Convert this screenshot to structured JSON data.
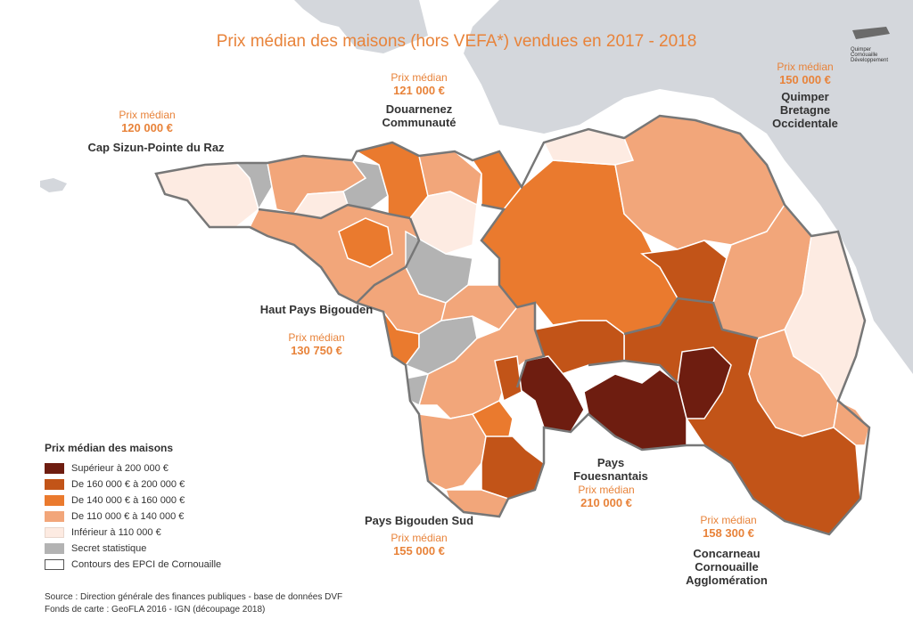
{
  "title": "Prix médian des maisons (hors VEFA*) vendues en 2017 - 2018",
  "logo": {
    "line1": "Quimper",
    "line2": "Cornouaille",
    "line3": "Développement"
  },
  "colors": {
    "sup_200": "#6e1d10",
    "160_200": "#c25418",
    "140_160": "#ea7a2e",
    "110_140": "#f2a67a",
    "inf_110": "#fdebe2",
    "secret": "#b3b3b3",
    "sea": "#ffffff",
    "land_outside": "#d4d7dc"
  },
  "regions": [
    {
      "name": "Cap Sizun-Pointe du Raz",
      "label": "Prix médian",
      "price": "120 000 €"
    },
    {
      "name": "Douarnenez Communauté",
      "label": "Prix médian",
      "price": "121 000 €"
    },
    {
      "name": "Quimper Bretagne Occidentale",
      "label": "Prix médian",
      "price": "150 000 €"
    },
    {
      "name": "Haut Pays Bigouden",
      "label": "Prix médian",
      "price": "130 750 €"
    },
    {
      "name": "Pays Fouesnantais",
      "label": "Prix médian",
      "price": "210 000 €"
    },
    {
      "name": "Pays Bigouden Sud",
      "label": "Prix médian",
      "price": "155 000 €"
    },
    {
      "name": "Concarneau Cornouaille Agglomération",
      "label": "Prix médian",
      "price": "158 300 €"
    }
  ],
  "legend": {
    "title": "Prix médian des maisons",
    "items": [
      {
        "label": "Supérieur à 200 000 €",
        "color": "#6e1d10"
      },
      {
        "label": "De 160 000 € à 200 000 €",
        "color": "#c25418"
      },
      {
        "label": "De 140 000 € à 160 000 €",
        "color": "#ea7a2e"
      },
      {
        "label": "De 110 000 € à 140 000 €",
        "color": "#f2a67a"
      },
      {
        "label": "Inférieur à 110 000 €",
        "color": "#fdebe2"
      },
      {
        "label": "Secret statistique",
        "color": "#b3b3b3"
      },
      {
        "label": "Contours des EPCI de Cornouaille",
        "color": "#ffffff"
      }
    ]
  },
  "source": {
    "line1": "Source : Direction générale des finances publiques - base de données DVF",
    "line2": "Fonds de carte : GeoFLA 2016 - IGN (découpage 2018)"
  }
}
